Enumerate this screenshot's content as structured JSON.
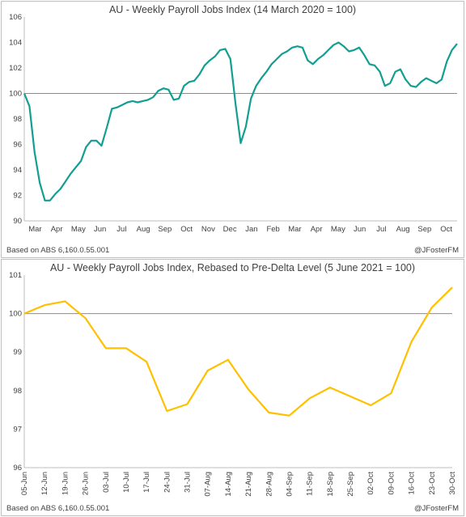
{
  "chart_data": [
    {
      "type": "line",
      "title": "AU - Weekly Payroll Jobs Index (14 March 2020 = 100)",
      "source_note": "Based on ABS 6,160.0.55.001",
      "attribution": "@JFosterFM",
      "ylim": [
        90,
        106
      ],
      "yticks": [
        "90",
        "92",
        "94",
        "96",
        "98",
        "100",
        "102",
        "104",
        "106"
      ],
      "xtick_labels": [
        "Mar",
        "Apr",
        "May",
        "Jun",
        "Jul",
        "Aug",
        "Sep",
        "Oct",
        "Nov",
        "Dec",
        "Jan",
        "Feb",
        "Mar",
        "Apr",
        "May",
        "Jun",
        "Jul",
        "Aug",
        "Sep",
        "Oct"
      ],
      "baseline": 100,
      "line_color": "#139e92",
      "values": [
        100.0,
        99.0,
        95.4,
        93.0,
        91.6,
        91.6,
        92.1,
        92.5,
        93.1,
        93.7,
        94.2,
        94.7,
        95.8,
        96.3,
        96.3,
        95.9,
        97.3,
        98.8,
        98.9,
        99.1,
        99.3,
        99.4,
        99.3,
        99.4,
        99.5,
        99.7,
        100.2,
        100.4,
        100.3,
        99.5,
        99.6,
        100.6,
        100.9,
        101.0,
        101.5,
        102.2,
        102.6,
        102.9,
        103.4,
        103.5,
        102.7,
        99.2,
        96.1,
        97.4,
        99.6,
        100.6,
        101.2,
        101.7,
        102.3,
        102.7,
        103.1,
        103.3,
        103.6,
        103.7,
        103.6,
        102.6,
        102.3,
        102.7,
        103.0,
        103.4,
        103.8,
        104.0,
        103.7,
        103.3,
        103.4,
        103.6,
        103.0,
        102.3,
        102.2,
        101.7,
        100.6,
        100.8,
        101.7,
        101.9,
        101.1,
        100.6,
        100.5,
        100.9,
        101.2,
        101.0,
        100.8,
        101.1,
        102.5,
        103.4,
        103.9
      ]
    },
    {
      "type": "line",
      "title": "AU - Weekly Payroll Jobs Index, Rebased to Pre-Delta Level (5 June 2021 = 100)",
      "source_note": "Based on ABS 6,160.0.55.001",
      "attribution": "@JFosterFM",
      "ylim": [
        96,
        101
      ],
      "yticks": [
        "96",
        "97",
        "98",
        "99",
        "100",
        "101"
      ],
      "categories": [
        "05-Jun",
        "12-Jun",
        "19-Jun",
        "26-Jun",
        "03-Jul",
        "10-Jul",
        "17-Jul",
        "24-Jul",
        "31-Jul",
        "07-Aug",
        "14-Aug",
        "21-Aug",
        "28-Aug",
        "04-Sep",
        "11-Sep",
        "18-Sep",
        "25-Sep",
        "02-Oct",
        "09-Oct",
        "16-Oct",
        "23-Oct",
        "30-Oct"
      ],
      "baseline": 100,
      "line_color": "#ffc000",
      "values": [
        100.0,
        100.22,
        100.32,
        99.88,
        99.1,
        99.1,
        98.75,
        97.47,
        97.65,
        98.52,
        98.8,
        98.03,
        97.43,
        97.35,
        97.8,
        98.08,
        97.85,
        97.62,
        97.93,
        99.27,
        100.16,
        100.68
      ]
    }
  ]
}
